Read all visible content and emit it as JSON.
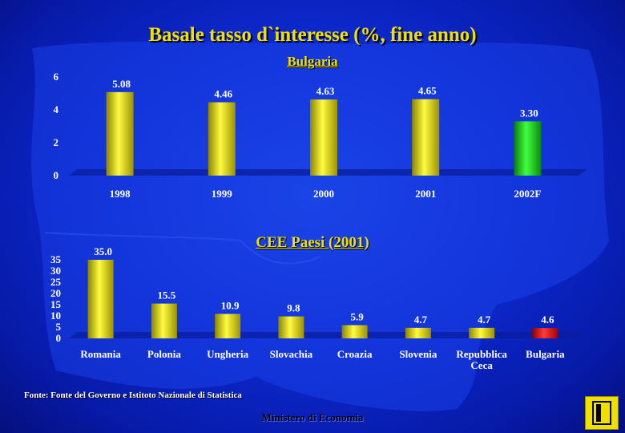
{
  "title": "Basale tasso d`interesse (%, fine anno)",
  "colors": {
    "bar_yellow": "#e8e000",
    "bar_green": "#1fc81f",
    "bar_red": "#e81010",
    "text_yellow": "#f0e000"
  },
  "chart_data": [
    {
      "type": "bar",
      "title": "Bulgaria",
      "categories": [
        "1998",
        "1999",
        "2000",
        "2001",
        "2002F"
      ],
      "values": [
        5.08,
        4.46,
        4.63,
        4.65,
        3.3
      ],
      "labels": [
        "5.08",
        "4.46",
        "4.63",
        "4.65",
        "3.30"
      ],
      "colors": [
        "#e8e000",
        "#e8e000",
        "#e8e000",
        "#e8e000",
        "#1fc81f"
      ],
      "yticks": [
        0,
        2,
        4,
        6
      ],
      "ylim": [
        0,
        6
      ],
      "grid": false
    },
    {
      "type": "bar",
      "title": "CEE Paesi (2001)",
      "categories": [
        "Romania",
        "Polonia",
        "Ungheria",
        "Slovachia",
        "Croazia",
        "Slovenia",
        "Repubblica Ceca",
        "Bulgaria"
      ],
      "values": [
        35.0,
        15.5,
        10.9,
        9.8,
        5.9,
        4.7,
        4.7,
        4.6
      ],
      "labels": [
        "35.0",
        "15.5",
        "10.9",
        "9.8",
        "5.9",
        "4.7",
        "4.7",
        "4.6"
      ],
      "colors": [
        "#e8e000",
        "#e8e000",
        "#e8e000",
        "#e8e000",
        "#e8e000",
        "#e8e000",
        "#e8e000",
        "#e81010"
      ],
      "yticks": [
        0,
        5,
        10,
        15,
        20,
        25,
        30,
        35
      ],
      "ylim": [
        0,
        35
      ],
      "grid": false
    }
  ],
  "footer": {
    "source": "Fonte: Fonte del Governo e Istitoto Nazionale di Statistica",
    "ministry": "Ministero di Economia"
  },
  "nav": {
    "icon": "end-of-show-icon"
  }
}
